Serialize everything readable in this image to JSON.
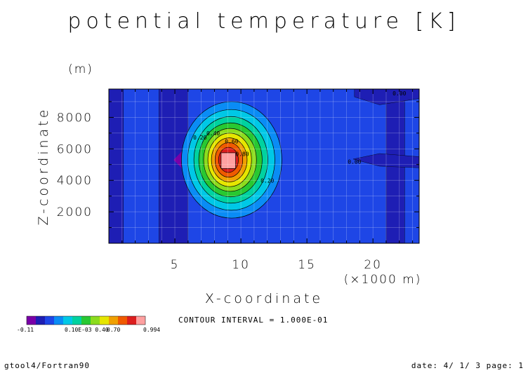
{
  "title": "potential temperature [K]",
  "footer": {
    "left": "gtool4/Fortran90",
    "right": "date: 4/ 1/ 3 page: 1"
  },
  "contour_interval_text": "CONTOUR INTERVAL = 1.000E-01",
  "colorbar": {
    "colors": [
      "#7a00a8",
      "#1e1eb4",
      "#1e46e6",
      "#0a8cf5",
      "#00c8e6",
      "#00d2a0",
      "#28c832",
      "#8cdc1e",
      "#e6e600",
      "#f0a000",
      "#f05a00",
      "#dc1e1e",
      "#ffa0a0"
    ],
    "labels": [
      "-0.11",
      "0.10E-03 0.40",
      "0.70",
      "0.994"
    ]
  },
  "chart_data": {
    "type": "heatmap",
    "title": "potential temperature [K]",
    "xlabel": "X-coordinate",
    "xunit": "(×1000 m)",
    "ylabel": "Z-coordinate",
    "yunit": "(m)",
    "xlim": [
      0,
      23.5
    ],
    "ylim": [
      0,
      9800
    ],
    "xticks": [
      5,
      10,
      15,
      20
    ],
    "yticks": [
      2000,
      4000,
      6000,
      8000
    ],
    "contour_interval": 0.1,
    "background_value": 0.0,
    "anomaly": {
      "center_x": 9.0,
      "center_z": 5200,
      "peak": 0.994
    },
    "contour_levels": [
      0.1,
      0.2,
      0.3,
      0.4,
      0.5,
      0.6,
      0.7,
      0.8,
      0.9
    ],
    "contour_labels": [
      {
        "text": "0.20",
        "x": 6.9,
        "z": 6600
      },
      {
        "text": "0.40",
        "x": 7.9,
        "z": 6850
      },
      {
        "text": "0.60",
        "x": 9.3,
        "z": 6350
      },
      {
        "text": "0.80",
        "x": 10.1,
        "z": 5550
      },
      {
        "text": "0.20",
        "x": 12.0,
        "z": 3850
      },
      {
        "text": "0.00",
        "x": 22.0,
        "z": 9400
      },
      {
        "text": "0.00",
        "x": 18.6,
        "z": 5050
      }
    ],
    "negative_columns": [
      {
        "x0": 0.0,
        "x1": 1.1
      },
      {
        "x0": 3.8,
        "x1": 6.0
      },
      {
        "x0": 21.0,
        "x1": 22.4
      }
    ]
  }
}
